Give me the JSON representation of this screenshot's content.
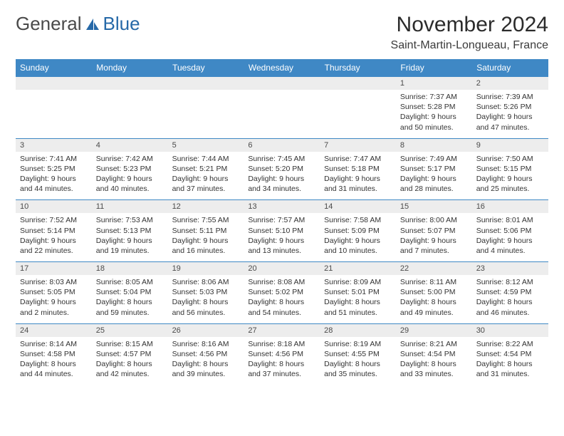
{
  "colors": {
    "header_bg": "#3f88c5",
    "header_text": "#ffffff",
    "daynum_bg": "#ededed",
    "row_border": "#3f88c5",
    "body_text": "#333333",
    "logo_gray": "#4a4a4a",
    "logo_blue": "#2669a8",
    "page_bg": "#ffffff"
  },
  "logo": {
    "part1": "General",
    "part2": "Blue"
  },
  "title": "November 2024",
  "subtitle": "Saint-Martin-Longueau, France",
  "day_headers": [
    "Sunday",
    "Monday",
    "Tuesday",
    "Wednesday",
    "Thursday",
    "Friday",
    "Saturday"
  ],
  "weeks": [
    [
      null,
      null,
      null,
      null,
      null,
      {
        "n": "1",
        "sr": "Sunrise: 7:37 AM",
        "ss": "Sunset: 5:28 PM",
        "d1": "Daylight: 9 hours",
        "d2": "and 50 minutes."
      },
      {
        "n": "2",
        "sr": "Sunrise: 7:39 AM",
        "ss": "Sunset: 5:26 PM",
        "d1": "Daylight: 9 hours",
        "d2": "and 47 minutes."
      }
    ],
    [
      {
        "n": "3",
        "sr": "Sunrise: 7:41 AM",
        "ss": "Sunset: 5:25 PM",
        "d1": "Daylight: 9 hours",
        "d2": "and 44 minutes."
      },
      {
        "n": "4",
        "sr": "Sunrise: 7:42 AM",
        "ss": "Sunset: 5:23 PM",
        "d1": "Daylight: 9 hours",
        "d2": "and 40 minutes."
      },
      {
        "n": "5",
        "sr": "Sunrise: 7:44 AM",
        "ss": "Sunset: 5:21 PM",
        "d1": "Daylight: 9 hours",
        "d2": "and 37 minutes."
      },
      {
        "n": "6",
        "sr": "Sunrise: 7:45 AM",
        "ss": "Sunset: 5:20 PM",
        "d1": "Daylight: 9 hours",
        "d2": "and 34 minutes."
      },
      {
        "n": "7",
        "sr": "Sunrise: 7:47 AM",
        "ss": "Sunset: 5:18 PM",
        "d1": "Daylight: 9 hours",
        "d2": "and 31 minutes."
      },
      {
        "n": "8",
        "sr": "Sunrise: 7:49 AM",
        "ss": "Sunset: 5:17 PM",
        "d1": "Daylight: 9 hours",
        "d2": "and 28 minutes."
      },
      {
        "n": "9",
        "sr": "Sunrise: 7:50 AM",
        "ss": "Sunset: 5:15 PM",
        "d1": "Daylight: 9 hours",
        "d2": "and 25 minutes."
      }
    ],
    [
      {
        "n": "10",
        "sr": "Sunrise: 7:52 AM",
        "ss": "Sunset: 5:14 PM",
        "d1": "Daylight: 9 hours",
        "d2": "and 22 minutes."
      },
      {
        "n": "11",
        "sr": "Sunrise: 7:53 AM",
        "ss": "Sunset: 5:13 PM",
        "d1": "Daylight: 9 hours",
        "d2": "and 19 minutes."
      },
      {
        "n": "12",
        "sr": "Sunrise: 7:55 AM",
        "ss": "Sunset: 5:11 PM",
        "d1": "Daylight: 9 hours",
        "d2": "and 16 minutes."
      },
      {
        "n": "13",
        "sr": "Sunrise: 7:57 AM",
        "ss": "Sunset: 5:10 PM",
        "d1": "Daylight: 9 hours",
        "d2": "and 13 minutes."
      },
      {
        "n": "14",
        "sr": "Sunrise: 7:58 AM",
        "ss": "Sunset: 5:09 PM",
        "d1": "Daylight: 9 hours",
        "d2": "and 10 minutes."
      },
      {
        "n": "15",
        "sr": "Sunrise: 8:00 AM",
        "ss": "Sunset: 5:07 PM",
        "d1": "Daylight: 9 hours",
        "d2": "and 7 minutes."
      },
      {
        "n": "16",
        "sr": "Sunrise: 8:01 AM",
        "ss": "Sunset: 5:06 PM",
        "d1": "Daylight: 9 hours",
        "d2": "and 4 minutes."
      }
    ],
    [
      {
        "n": "17",
        "sr": "Sunrise: 8:03 AM",
        "ss": "Sunset: 5:05 PM",
        "d1": "Daylight: 9 hours",
        "d2": "and 2 minutes."
      },
      {
        "n": "18",
        "sr": "Sunrise: 8:05 AM",
        "ss": "Sunset: 5:04 PM",
        "d1": "Daylight: 8 hours",
        "d2": "and 59 minutes."
      },
      {
        "n": "19",
        "sr": "Sunrise: 8:06 AM",
        "ss": "Sunset: 5:03 PM",
        "d1": "Daylight: 8 hours",
        "d2": "and 56 minutes."
      },
      {
        "n": "20",
        "sr": "Sunrise: 8:08 AM",
        "ss": "Sunset: 5:02 PM",
        "d1": "Daylight: 8 hours",
        "d2": "and 54 minutes."
      },
      {
        "n": "21",
        "sr": "Sunrise: 8:09 AM",
        "ss": "Sunset: 5:01 PM",
        "d1": "Daylight: 8 hours",
        "d2": "and 51 minutes."
      },
      {
        "n": "22",
        "sr": "Sunrise: 8:11 AM",
        "ss": "Sunset: 5:00 PM",
        "d1": "Daylight: 8 hours",
        "d2": "and 49 minutes."
      },
      {
        "n": "23",
        "sr": "Sunrise: 8:12 AM",
        "ss": "Sunset: 4:59 PM",
        "d1": "Daylight: 8 hours",
        "d2": "and 46 minutes."
      }
    ],
    [
      {
        "n": "24",
        "sr": "Sunrise: 8:14 AM",
        "ss": "Sunset: 4:58 PM",
        "d1": "Daylight: 8 hours",
        "d2": "and 44 minutes."
      },
      {
        "n": "25",
        "sr": "Sunrise: 8:15 AM",
        "ss": "Sunset: 4:57 PM",
        "d1": "Daylight: 8 hours",
        "d2": "and 42 minutes."
      },
      {
        "n": "26",
        "sr": "Sunrise: 8:16 AM",
        "ss": "Sunset: 4:56 PM",
        "d1": "Daylight: 8 hours",
        "d2": "and 39 minutes."
      },
      {
        "n": "27",
        "sr": "Sunrise: 8:18 AM",
        "ss": "Sunset: 4:56 PM",
        "d1": "Daylight: 8 hours",
        "d2": "and 37 minutes."
      },
      {
        "n": "28",
        "sr": "Sunrise: 8:19 AM",
        "ss": "Sunset: 4:55 PM",
        "d1": "Daylight: 8 hours",
        "d2": "and 35 minutes."
      },
      {
        "n": "29",
        "sr": "Sunrise: 8:21 AM",
        "ss": "Sunset: 4:54 PM",
        "d1": "Daylight: 8 hours",
        "d2": "and 33 minutes."
      },
      {
        "n": "30",
        "sr": "Sunrise: 8:22 AM",
        "ss": "Sunset: 4:54 PM",
        "d1": "Daylight: 8 hours",
        "d2": "and 31 minutes."
      }
    ]
  ]
}
